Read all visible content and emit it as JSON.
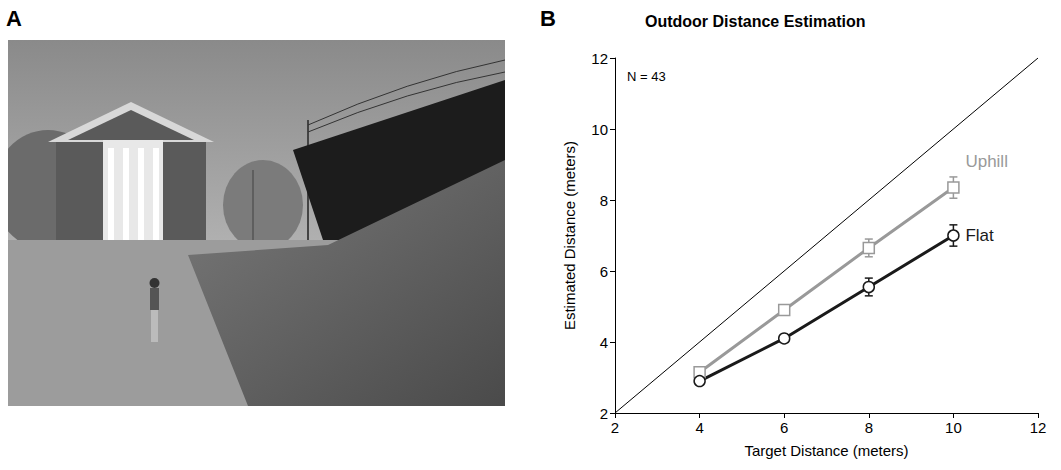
{
  "panel_labels": {
    "photo": "A",
    "chart": "B"
  },
  "chart_data": {
    "type": "line",
    "title": "Outdoor Distance Estimation",
    "annotation": "N = 43",
    "x_label": "Target Distance (meters)",
    "y_label": "Estimated Distance (meters)",
    "xlim": [
      2,
      12
    ],
    "ylim": [
      2,
      12
    ],
    "xticks": [
      2,
      4,
      6,
      8,
      10,
      12
    ],
    "yticks": [
      2,
      4,
      6,
      8,
      10,
      12
    ],
    "grid": false,
    "x": [
      4,
      6,
      8,
      10
    ],
    "series": [
      {
        "name": "Uphill",
        "color": "#999999",
        "marker": "square",
        "values": [
          3.15,
          4.9,
          6.65,
          8.35
        ],
        "errors": [
          0.1,
          0.1,
          0.25,
          0.3
        ]
      },
      {
        "name": "Flat",
        "color": "#1a1a1a",
        "marker": "circle",
        "values": [
          2.9,
          4.1,
          5.55,
          7.0
        ],
        "errors": [
          0.1,
          0.1,
          0.25,
          0.3
        ]
      }
    ],
    "reference_line": {
      "x": [
        2,
        12
      ],
      "y": [
        2,
        12
      ]
    }
  }
}
